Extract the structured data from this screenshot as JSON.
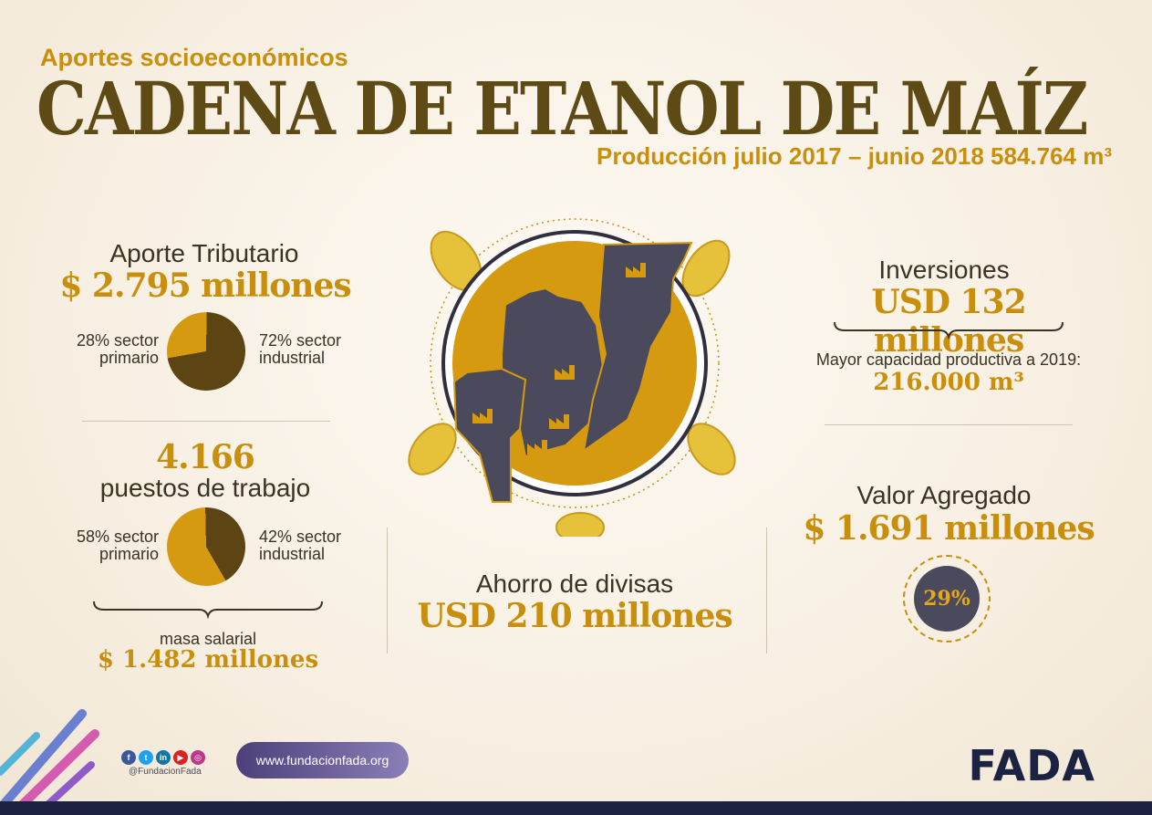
{
  "header": {
    "subtitle": "Aportes socioeconómicos",
    "title": "CADENA DE ETANOL DE MAÍZ",
    "production": "Producción julio 2017 – junio 2018 584.764 m³"
  },
  "tax": {
    "label": "Aporte Tributario",
    "value": "$ 2.795 millones",
    "left_line1": "28% sector",
    "left_line2": "primario",
    "right_line1": "72% sector",
    "right_line2": "industrial",
    "primary_pct": 28,
    "industrial_pct": 72
  },
  "jobs": {
    "value": "4.166",
    "label": "puestos de trabajo",
    "left_line1": "58% sector",
    "left_line2": "primario",
    "right_line1": "42% sector",
    "right_line2": "industrial",
    "primary_pct": 58,
    "industrial_pct": 42,
    "salary_label": "masa salarial",
    "salary_value": "$ 1.482 millones"
  },
  "savings": {
    "label": "Ahorro de divisas",
    "value": "USD 210 millones"
  },
  "investments": {
    "label": "Inversiones",
    "value": "USD 132 millones",
    "capacity_label": "Mayor capacidad productiva a 2019:",
    "capacity_value": "216.000 m³"
  },
  "added_value": {
    "label": "Valor Agregado",
    "value": "$ 1.691 millones",
    "percent": "29%"
  },
  "footer": {
    "handle": "@FundacionFada",
    "website": "www.fundacionfada.org",
    "logo": "FADA"
  },
  "colors": {
    "gold": "#c98f0c",
    "dark": "#5d4a14",
    "map": "#4a4a5c",
    "navy": "#1c2342"
  }
}
